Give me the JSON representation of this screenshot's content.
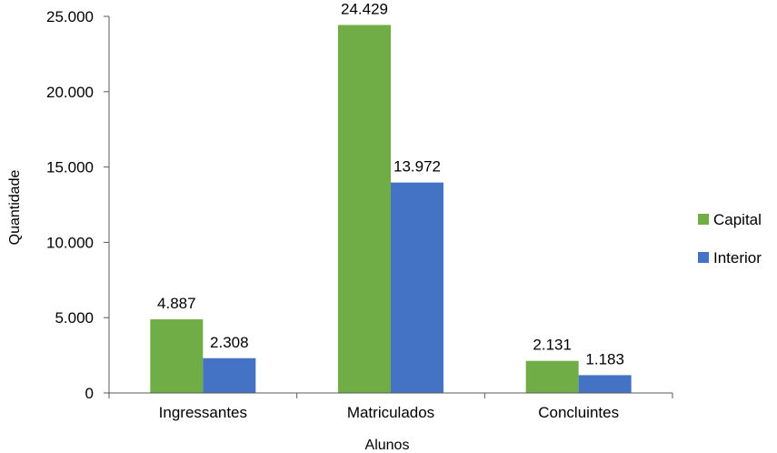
{
  "chart_data": {
    "type": "bar",
    "categories": [
      "Ingressantes",
      "Matriculados",
      "Concluintes"
    ],
    "series": [
      {
        "name": "Capital",
        "color": "#70AD47",
        "values": [
          4887,
          24429,
          2131
        ]
      },
      {
        "name": "Interior",
        "color": "#4472C4",
        "values": [
          2308,
          13972,
          1183
        ]
      }
    ],
    "data_labels": [
      [
        "4.887",
        "24.429",
        "2.131"
      ],
      [
        "2.308",
        "13.972",
        "1.183"
      ]
    ],
    "xlabel": "Alunos",
    "ylabel": "Quantidade",
    "ylim": [
      0,
      25000
    ],
    "yticks": [
      0,
      5000,
      10000,
      15000,
      20000,
      25000
    ],
    "ytick_labels": [
      "0",
      "5.000",
      "10.000",
      "15.000",
      "20.000",
      "25.000"
    ],
    "grid": false,
    "legend_position": "right"
  }
}
